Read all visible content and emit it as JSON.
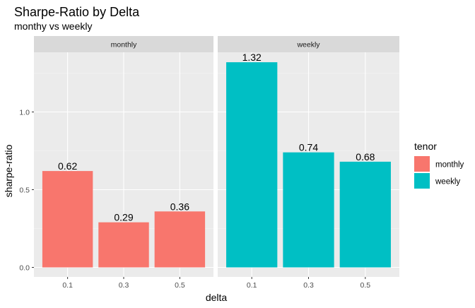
{
  "chart_data": {
    "type": "bar",
    "title": "Sharpe-Ratio by Delta",
    "subtitle": "monthy vs weekly",
    "xlabel": "delta",
    "ylabel": "sharpe-ratio",
    "ylim": [
      0,
      1.35
    ],
    "yticks": [
      "0.0",
      "0.5",
      "1.0"
    ],
    "ytick_values": [
      0.0,
      0.5,
      1.0
    ],
    "grid": true,
    "categories": [
      "0.1",
      "0.3",
      "0.5"
    ],
    "facets": [
      {
        "strip": "monthly",
        "series": "monthly",
        "color": "#F8766D",
        "values": [
          0.62,
          0.29,
          0.36
        ],
        "labels": [
          "0.62",
          "0.29",
          "0.36"
        ]
      },
      {
        "strip": "weekly",
        "series": "weekly",
        "color": "#00BFC4",
        "values": [
          1.32,
          0.74,
          0.68
        ],
        "labels": [
          "1.32",
          "0.74",
          "0.68"
        ]
      }
    ],
    "legend": {
      "title": "tenor",
      "position": "right",
      "items": [
        {
          "name": "monthly",
          "color": "#F8766D"
        },
        {
          "name": "weekly",
          "color": "#00BFC4"
        }
      ]
    }
  }
}
